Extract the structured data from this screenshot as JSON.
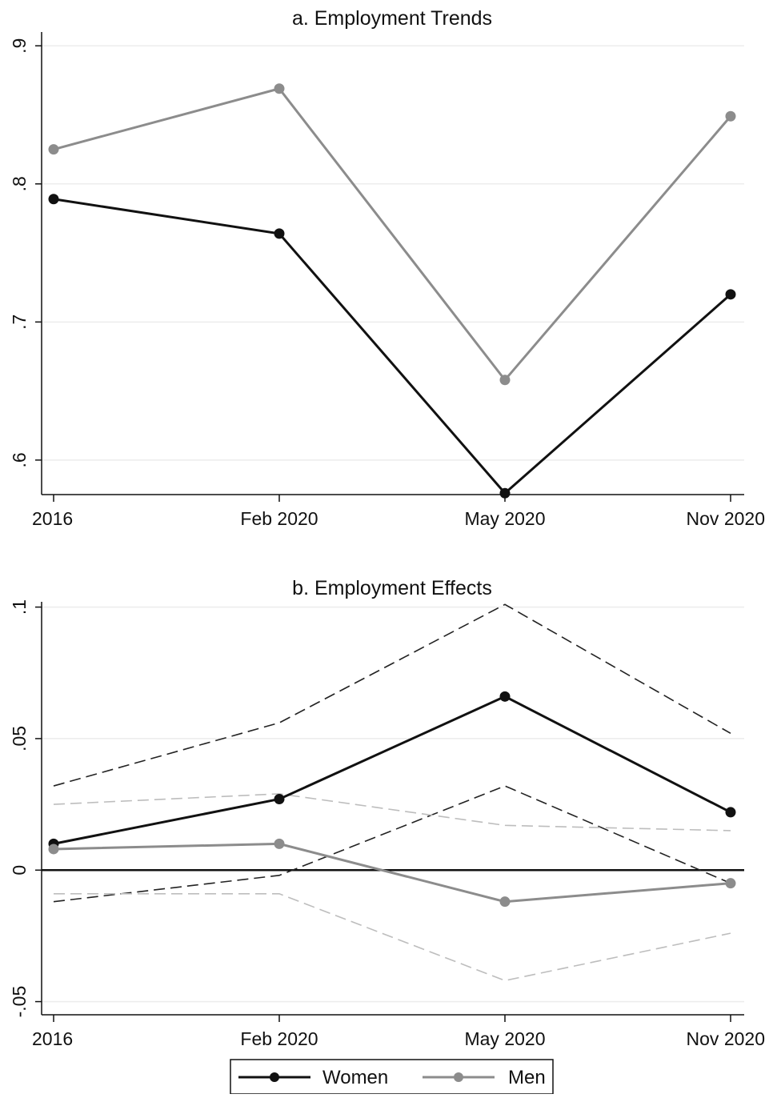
{
  "chart_data": [
    {
      "type": "line",
      "title": "a. Employment Trends",
      "xlabel": "",
      "ylabel": "",
      "categories": [
        "2016",
        "Feb 2020",
        "May 2020",
        "Nov 2020"
      ],
      "ylim": [
        0.575,
        0.91
      ],
      "yticks": [
        0.6,
        0.7,
        0.8,
        0.9
      ],
      "ytick_labels": [
        ".6",
        ".7",
        ".8",
        ".9"
      ],
      "grid": true,
      "series": [
        {
          "name": "Women",
          "color": "#111111",
          "values": [
            0.789,
            0.764,
            0.576,
            0.72
          ]
        },
        {
          "name": "Men",
          "color": "#8c8c8c",
          "values": [
            0.825,
            0.869,
            0.658,
            0.849
          ]
        }
      ]
    },
    {
      "type": "line",
      "title": "b. Employment Effects",
      "xlabel": "",
      "ylabel": "",
      "categories": [
        "2016",
        "Feb 2020",
        "May 2020",
        "Nov 2020"
      ],
      "ylim": [
        -0.055,
        0.102
      ],
      "yticks": [
        -0.05,
        0,
        0.05,
        0.1
      ],
      "ytick_labels": [
        "-.05",
        "0",
        ".05",
        ".1"
      ],
      "grid": true,
      "zero_line": true,
      "series": [
        {
          "name": "Women",
          "color": "#111111",
          "values": [
            0.01,
            0.027,
            0.066,
            0.022
          ],
          "ci_lower": [
            -0.012,
            -0.002,
            0.032,
            -0.005
          ],
          "ci_upper": [
            0.032,
            0.056,
            0.101,
            0.052
          ]
        },
        {
          "name": "Men",
          "color": "#8c8c8c",
          "values": [
            0.008,
            0.01,
            -0.012,
            -0.005
          ],
          "ci_lower": [
            -0.009,
            -0.009,
            -0.042,
            -0.024
          ],
          "ci_upper": [
            0.025,
            0.029,
            0.017,
            0.015
          ]
        }
      ]
    }
  ],
  "legend": {
    "placement": "bottom-center",
    "items": [
      {
        "label": "Women",
        "color": "#111111"
      },
      {
        "label": "Men",
        "color": "#8c8c8c"
      }
    ]
  }
}
